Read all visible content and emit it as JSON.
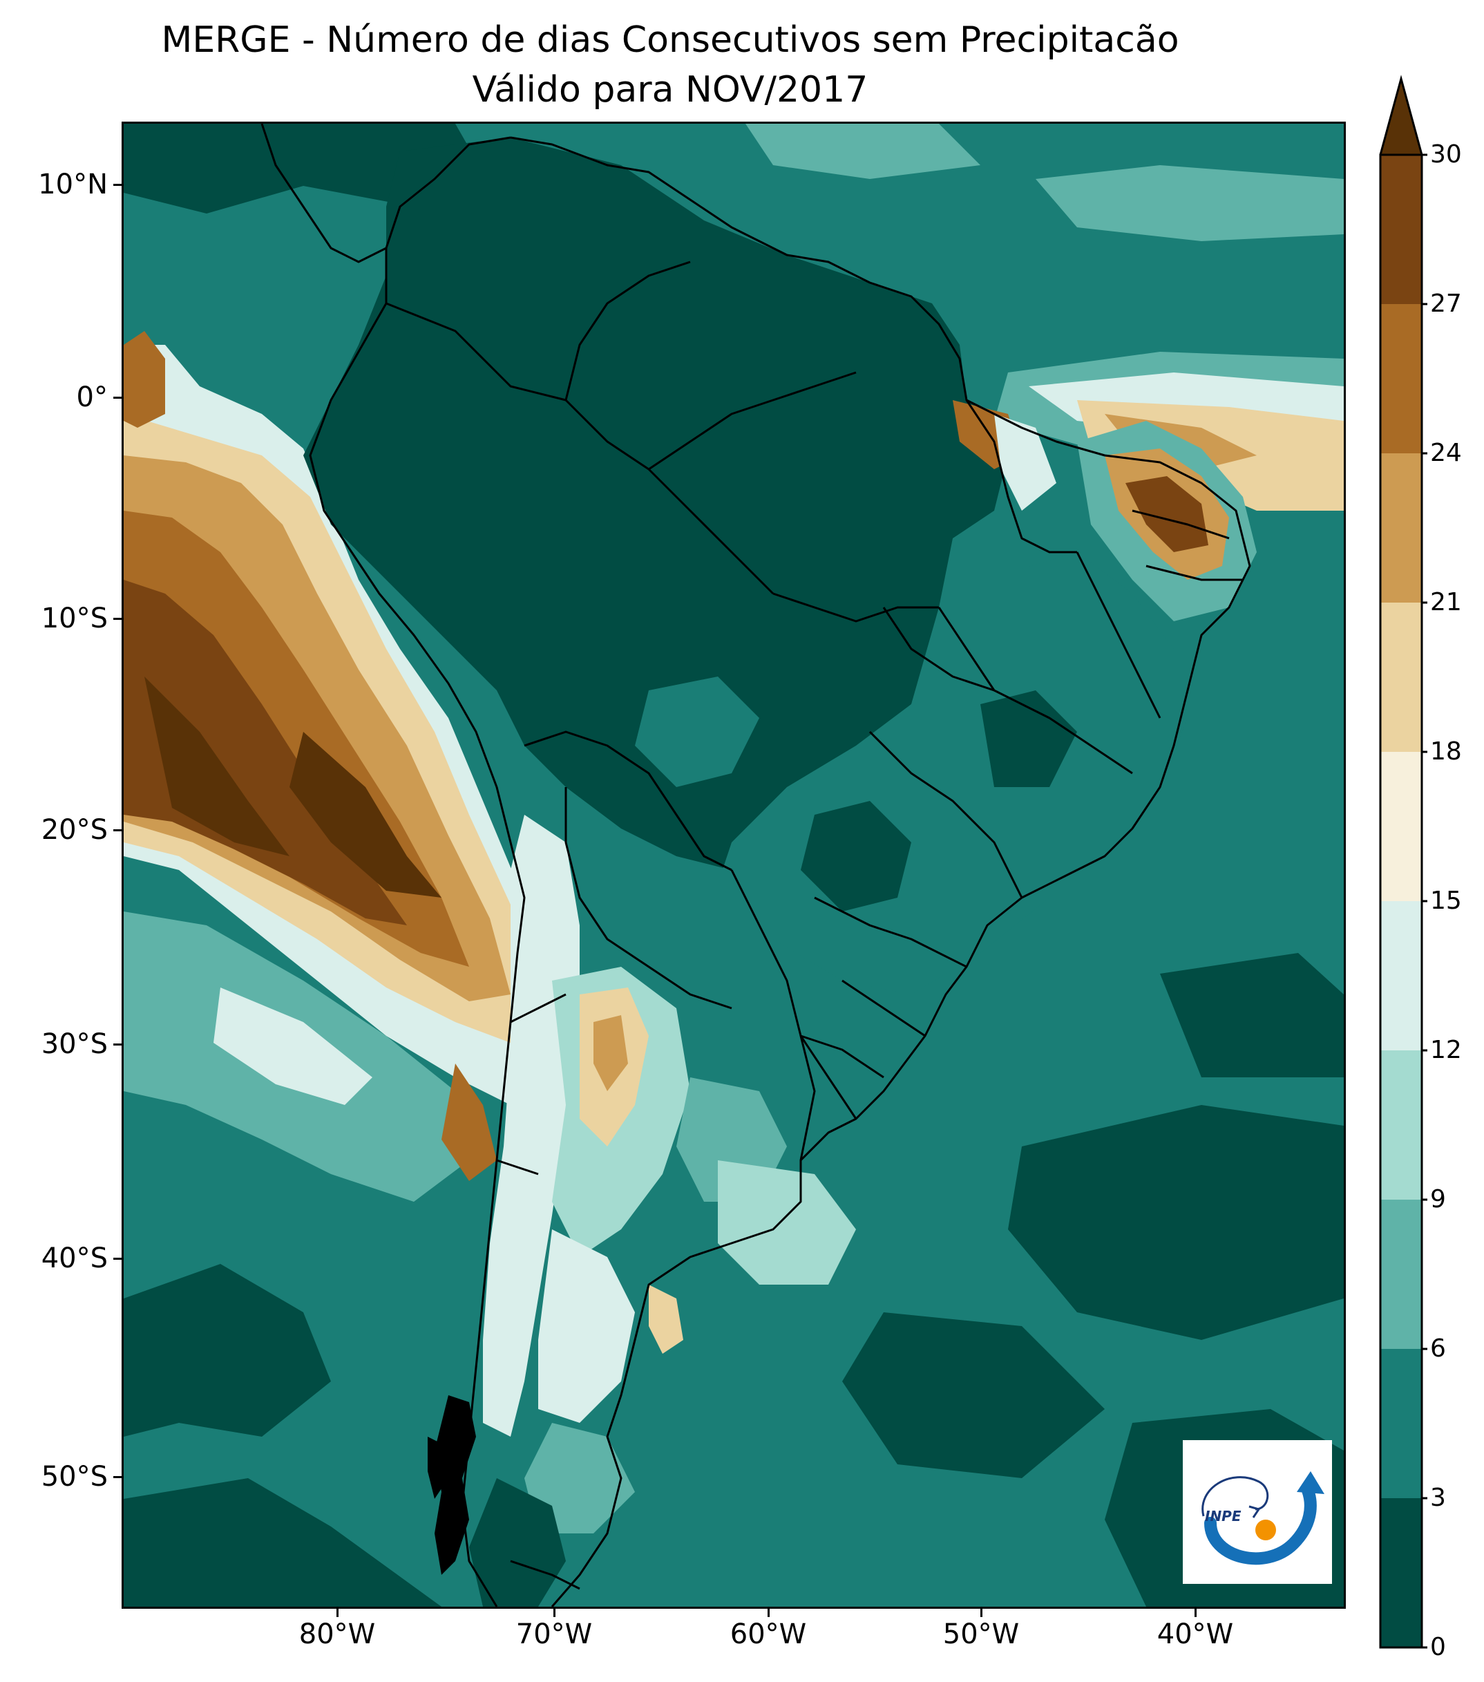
{
  "title": {
    "line1": "MERGE - Número de dias Consecutivos sem Precipitacão",
    "line2": "Válido para NOV/2017"
  },
  "axes": {
    "lat_labels": [
      "10°N",
      "0°",
      "10°S",
      "20°S",
      "30°S",
      "40°S",
      "50°S"
    ],
    "lon_labels": [
      "80°W",
      "70°W",
      "60°W",
      "50°W",
      "40°W"
    ]
  },
  "colorbar": {
    "ticks": [
      "0",
      "3",
      "6",
      "9",
      "12",
      "15",
      "18",
      "21",
      "24",
      "27",
      "30"
    ],
    "colors": [
      "#014c43",
      "#1a7e76",
      "#5fb3a8",
      "#a4dbd0",
      "#daefeb",
      "#f7f0dc",
      "#ebd3a0",
      "#cd9b52",
      "#a96b25",
      "#7a4412",
      "#593207"
    ],
    "extend": "max"
  },
  "logo": {
    "text": "INPE",
    "icon": "inpe-logo-icon"
  },
  "legend_bins": [
    {
      "range": "0-3",
      "color": "#014c43"
    },
    {
      "range": "3-6",
      "color": "#1a7e76"
    },
    {
      "range": "6-9",
      "color": "#5fb3a8"
    },
    {
      "range": "9-12",
      "color": "#a4dbd0"
    },
    {
      "range": "12-15",
      "color": "#daefeb"
    },
    {
      "range": "15-18",
      "color": "#f7f0dc"
    },
    {
      "range": "18-21",
      "color": "#ebd3a0"
    },
    {
      "range": "21-24",
      "color": "#cd9b52"
    },
    {
      "range": "24-27",
      "color": "#a96b25"
    },
    {
      "range": "27-30",
      "color": "#7a4412"
    },
    {
      "range": ">30",
      "color": "#593207"
    }
  ]
}
